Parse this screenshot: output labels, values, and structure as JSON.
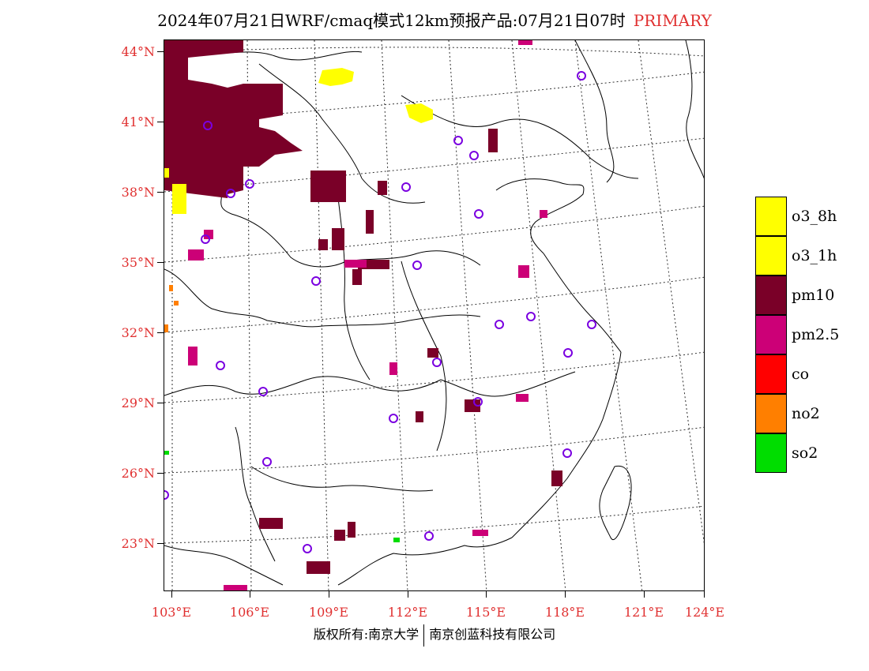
{
  "title": {
    "main": "2024年07月21日WRF/cmaq模式12km预报产品:07月21日07时",
    "tag": "PRIMARY"
  },
  "colors": {
    "label": "#e03030",
    "o3_8h": "#ffff00",
    "o3_1h": "#ffff00",
    "pm10": "#7a0028",
    "pm25": "#cc0077",
    "co": "#ff0000",
    "no2": "#ff7f00",
    "so2": "#00dd00",
    "station": "#7a00e0"
  },
  "axes": {
    "lat_labels": [
      "44°N",
      "41°N",
      "38°N",
      "35°N",
      "32°N",
      "29°N",
      "26°N",
      "23°N"
    ],
    "lon_labels": [
      "103°E",
      "106°E",
      "109°E",
      "112°E",
      "115°E",
      "118°E",
      "121°E",
      "124°E"
    ]
  },
  "legend": [
    {
      "label": "o3_8h",
      "color": "#ffff00"
    },
    {
      "label": "o3_1h",
      "color": "#ffff00"
    },
    {
      "label": "pm10",
      "color": "#7a0028"
    },
    {
      "label": "pm2.5",
      "color": "#cc0077"
    },
    {
      "label": "co",
      "color": "#ff0000"
    },
    {
      "label": "no2",
      "color": "#ff7f00"
    },
    {
      "label": "so2",
      "color": "#00dd00"
    }
  ],
  "credit": {
    "left": "版权所有:南京大学",
    "right": "南京创蓝科技有限公司"
  }
}
